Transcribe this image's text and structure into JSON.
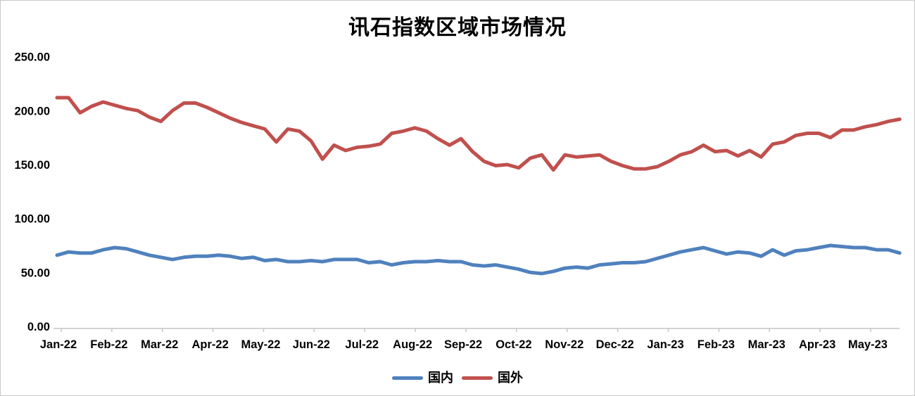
{
  "chart_data": {
    "type": "line",
    "title": "讯石指数区域市场情况",
    "xlabel": "",
    "ylabel": "",
    "ylim": [
      0,
      250
    ],
    "grid": false,
    "legend_position": "bottom",
    "y_ticks": [
      "250.00",
      "200.00",
      "150.00",
      "100.00",
      "50.00",
      "0.00"
    ],
    "categories": [
      "Jan-22",
      "Feb-22",
      "Mar-22",
      "Apr-22",
      "May-22",
      "Jun-22",
      "Jul-22",
      "Aug-22",
      "Sep-22",
      "Oct-22",
      "Nov-22",
      "Dec-22",
      "Jan-23",
      "Feb-23",
      "Mar-23",
      "Apr-23",
      "May-23"
    ],
    "x_unit": "week",
    "axis_color": "#c6c6c6",
    "series": [
      {
        "key": "domestic",
        "name": "国内",
        "color": "#4F81BD",
        "values": [
          66,
          69,
          68,
          68,
          71,
          73,
          72,
          69,
          66,
          64,
          62,
          64,
          65,
          65,
          66,
          65,
          63,
          64,
          61,
          62,
          60,
          60,
          61,
          60,
          62,
          62,
          62,
          59,
          60,
          57,
          59,
          60,
          60,
          61,
          60,
          60,
          57,
          56,
          57,
          55,
          53,
          50,
          49,
          51,
          54,
          55,
          54,
          57,
          58,
          59,
          59,
          60,
          63,
          66,
          69,
          71,
          73,
          70,
          67,
          69,
          68,
          65,
          71,
          66,
          70,
          71,
          73,
          75,
          74,
          73,
          73,
          71,
          71,
          68
        ]
      },
      {
        "key": "foreign",
        "name": "国外",
        "color": "#C0504D",
        "values": [
          212,
          212,
          198,
          204,
          208,
          205,
          202,
          200,
          194,
          190,
          200,
          207,
          207,
          203,
          198,
          193,
          189,
          186,
          183,
          171,
          183,
          181,
          172,
          155,
          168,
          163,
          166,
          167,
          169,
          179,
          181,
          184,
          181,
          174,
          168,
          174,
          162,
          153,
          149,
          150,
          147,
          156,
          159,
          145,
          159,
          157,
          158,
          159,
          153,
          149,
          146,
          146,
          148,
          153,
          159,
          162,
          168,
          162,
          163,
          158,
          163,
          157,
          169,
          171,
          177,
          179,
          179,
          175,
          182,
          182,
          185,
          187,
          190,
          192
        ]
      }
    ]
  }
}
